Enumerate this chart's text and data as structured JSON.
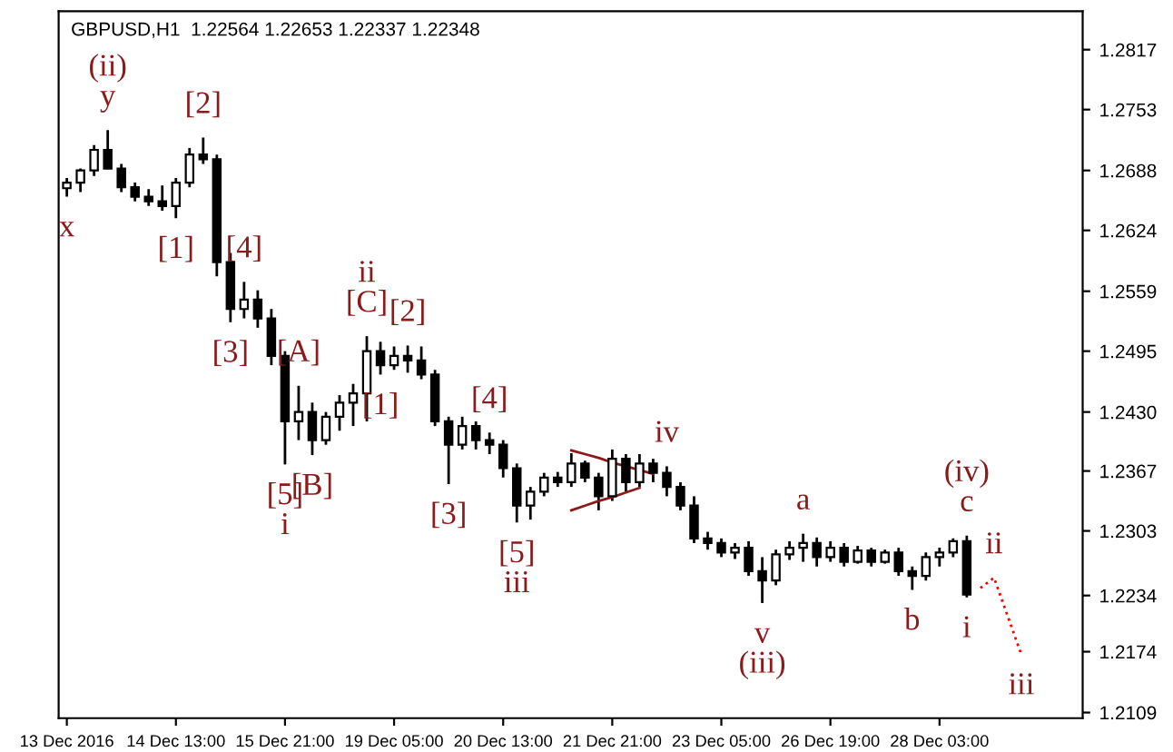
{
  "chart_data": {
    "type": "candlestick",
    "title": "GBPUSD,H1  1.22564 1.22653 1.22337 1.22348",
    "color": "#000000",
    "categories": [
      "13 Dec 2016",
      null,
      null,
      null,
      null,
      null,
      null,
      null,
      "14 Dec 13:00",
      null,
      null,
      null,
      null,
      null,
      null,
      null,
      "15 Dec 21:00",
      null,
      null,
      null,
      null,
      null,
      null,
      null,
      "19 Dec 05:00",
      null,
      null,
      null,
      null,
      null,
      null,
      null,
      "20 Dec 13:00",
      null,
      null,
      null,
      null,
      null,
      null,
      null,
      "21 Dec 21:00",
      null,
      null,
      null,
      null,
      null,
      null,
      null,
      "23 Dec 05:00",
      null,
      null,
      null,
      null,
      null,
      null,
      null,
      "26 Dec 19:00",
      null,
      null,
      null,
      null,
      null,
      null,
      null,
      "28 Dec 03:00",
      null,
      null,
      null,
      null,
      null,
      null,
      null,
      null,
      null,
      null
    ],
    "ohlc": [
      [
        1.2669,
        1.268,
        1.266,
        1.2675
      ],
      [
        1.2675,
        1.269,
        1.2665,
        1.2688
      ],
      [
        1.2688,
        1.2715,
        1.2682,
        1.271
      ],
      [
        1.271,
        1.2731,
        1.269,
        1.269
      ],
      [
        1.269,
        1.2695,
        1.2665,
        1.267
      ],
      [
        1.267,
        1.2675,
        1.2655,
        1.266
      ],
      [
        1.266,
        1.2668,
        1.265,
        1.2655
      ],
      [
        1.2655,
        1.2672,
        1.2645,
        1.265
      ],
      [
        1.265,
        1.268,
        1.2637,
        1.2675
      ],
      [
        1.2675,
        1.2712,
        1.267,
        1.2705
      ],
      [
        1.2705,
        1.2723,
        1.2695,
        1.27
      ],
      [
        1.27,
        1.2705,
        1.2575,
        1.259
      ],
      [
        1.259,
        1.26,
        1.2526,
        1.254
      ],
      [
        1.254,
        1.2569,
        1.253,
        1.255
      ],
      [
        1.255,
        1.256,
        1.252,
        1.253
      ],
      [
        1.253,
        1.254,
        1.248,
        1.249
      ],
      [
        1.249,
        1.2495,
        1.2374,
        1.242
      ],
      [
        1.242,
        1.2458,
        1.24,
        1.243
      ],
      [
        1.243,
        1.244,
        1.2384,
        1.24
      ],
      [
        1.24,
        1.243,
        1.2395,
        1.2425
      ],
      [
        1.2425,
        1.2448,
        1.241,
        1.244
      ],
      [
        1.244,
        1.246,
        1.2415,
        1.245
      ],
      [
        1.245,
        1.2511,
        1.242,
        1.2495
      ],
      [
        1.2495,
        1.2505,
        1.247,
        1.248
      ],
      [
        1.248,
        1.25,
        1.2475,
        1.249
      ],
      [
        1.249,
        1.2501,
        1.2472,
        1.2485
      ],
      [
        1.2485,
        1.25,
        1.2465,
        1.247
      ],
      [
        1.247,
        1.2475,
        1.2415,
        1.242
      ],
      [
        1.242,
        1.2425,
        1.2353,
        1.2395
      ],
      [
        1.2395,
        1.2425,
        1.239,
        1.2415
      ],
      [
        1.2415,
        1.242,
        1.239,
        1.24
      ],
      [
        1.24,
        1.2408,
        1.2385,
        1.2395
      ],
      [
        1.2395,
        1.24,
        1.236,
        1.237
      ],
      [
        1.237,
        1.2375,
        1.2312,
        1.233
      ],
      [
        1.233,
        1.235,
        1.2315,
        1.2345
      ],
      [
        1.2345,
        1.2365,
        1.234,
        1.236
      ],
      [
        1.236,
        1.2366,
        1.235,
        1.2355
      ],
      [
        1.2355,
        1.2386,
        1.235,
        1.2375
      ],
      [
        1.2375,
        1.2378,
        1.2355,
        1.236
      ],
      [
        1.236,
        1.2365,
        1.2325,
        1.234
      ],
      [
        1.234,
        1.239,
        1.2335,
        1.238
      ],
      [
        1.238,
        1.2385,
        1.2345,
        1.2355
      ],
      [
        1.2355,
        1.2385,
        1.235,
        1.2375
      ],
      [
        1.2375,
        1.238,
        1.2355,
        1.2365
      ],
      [
        1.2365,
        1.2372,
        1.234,
        1.235
      ],
      [
        1.235,
        1.2355,
        1.2325,
        1.233
      ],
      [
        1.233,
        1.234,
        1.229,
        1.2295
      ],
      [
        1.2295,
        1.2302,
        1.2283,
        1.229
      ],
      [
        1.229,
        1.2295,
        1.2275,
        1.228
      ],
      [
        1.228,
        1.229,
        1.2273,
        1.2285
      ],
      [
        1.2285,
        1.2292,
        1.2255,
        1.226
      ],
      [
        1.226,
        1.2275,
        1.2226,
        1.225
      ],
      [
        1.225,
        1.2283,
        1.2245,
        1.2278
      ],
      [
        1.2278,
        1.2292,
        1.2272,
        1.2285
      ],
      [
        1.2285,
        1.23,
        1.227,
        1.229
      ],
      [
        1.229,
        1.2296,
        1.2265,
        1.2275
      ],
      [
        1.2275,
        1.2292,
        1.227,
        1.2285
      ],
      [
        1.2285,
        1.229,
        1.2265,
        1.227
      ],
      [
        1.227,
        1.2287,
        1.2268,
        1.2282
      ],
      [
        1.2282,
        1.2285,
        1.2265,
        1.227
      ],
      [
        1.227,
        1.2283,
        1.2268,
        1.228
      ],
      [
        1.228,
        1.2285,
        1.2255,
        1.226
      ],
      [
        1.226,
        1.2265,
        1.224,
        1.2255
      ],
      [
        1.2255,
        1.228,
        1.225,
        1.2275
      ],
      [
        1.2275,
        1.2285,
        1.2265,
        1.228
      ],
      [
        1.228,
        1.2295,
        1.2275,
        1.2292
      ],
      [
        1.2292,
        1.2298,
        1.2232,
        1.2235
      ],
      null,
      null,
      null,
      null,
      null,
      null,
      null,
      null
    ],
    "series": [
      {
        "type": "line",
        "color": "#8b1a1a",
        "values": [
          null,
          null,
          null,
          null,
          null,
          null,
          null,
          null,
          null,
          null,
          null,
          null,
          null,
          null,
          null,
          null,
          null,
          null,
          null,
          null,
          null,
          null,
          null,
          null,
          null,
          null,
          null,
          null,
          null,
          null,
          null,
          null,
          null,
          null,
          null,
          null,
          null,
          1.2389,
          1.2385,
          1.2381,
          1.2376,
          1.2372,
          1.2368,
          1.2364,
          null,
          null,
          null,
          null,
          null,
          null,
          null,
          null,
          null,
          null,
          null,
          null,
          null,
          null,
          null,
          null,
          null,
          null,
          null,
          null,
          null,
          null,
          null,
          null,
          null,
          null,
          null,
          null,
          null,
          null,
          null
        ]
      },
      {
        "type": "line",
        "color": "#8b1a1a",
        "values": [
          null,
          null,
          null,
          null,
          null,
          null,
          null,
          null,
          null,
          null,
          null,
          null,
          null,
          null,
          null,
          null,
          null,
          null,
          null,
          null,
          null,
          null,
          null,
          null,
          null,
          null,
          null,
          null,
          null,
          null,
          null,
          null,
          null,
          null,
          null,
          null,
          null,
          1.2325,
          1.233,
          1.2335,
          1.2339,
          1.2344,
          1.2349,
          null,
          null,
          null,
          null,
          null,
          null,
          null,
          null,
          null,
          null,
          null,
          null,
          null,
          null,
          null,
          null,
          null,
          null,
          null,
          null,
          null,
          null,
          null,
          null,
          null,
          null,
          null,
          null,
          null,
          null,
          null,
          null
        ]
      },
      {
        "type": "line",
        "color": "#ff0000",
        "line_style": "dotted",
        "values": [
          null,
          null,
          null,
          null,
          null,
          null,
          null,
          null,
          null,
          null,
          null,
          null,
          null,
          null,
          null,
          null,
          null,
          null,
          null,
          null,
          null,
          null,
          null,
          null,
          null,
          null,
          null,
          null,
          null,
          null,
          null,
          null,
          null,
          null,
          null,
          null,
          null,
          null,
          null,
          null,
          null,
          null,
          null,
          null,
          null,
          null,
          null,
          null,
          null,
          null,
          null,
          null,
          null,
          null,
          null,
          null,
          null,
          null,
          null,
          null,
          null,
          null,
          null,
          null,
          null,
          null,
          null,
          1.2242,
          1.2253,
          1.2212,
          1.2171,
          null,
          null,
          null,
          null
        ]
      }
    ],
    "ylim": [
      1.2103,
      1.2858
    ],
    "yticks": [
      1.2109,
      1.2174,
      1.2234,
      1.2303,
      1.2367,
      {
        "value": 1.243,
        "label": "1.2430"
      },
      1.2495,
      1.2559,
      1.2624,
      1.2688,
      1.2753,
      1.2817
    ],
    "grid": false,
    "annotations": [
      {
        "text": "(ii)",
        "y": 1.2731
      },
      {
        "text": "y",
        "y": 1.2731
      },
      {
        "text": "x",
        "y": 1.266
      },
      {
        "text": "[1]",
        "y": 1.2637
      },
      {
        "text": "[2]",
        "y": 1.2723
      },
      {
        "text": "[3]",
        "y": 1.2526
      },
      {
        "text": "[4]",
        "y": 1.2569
      },
      {
        "text": "[5]",
        "y": 1.2374
      },
      {
        "text": "i",
        "y": 1.2374
      },
      {
        "text": "[A]",
        "y": 1.2458
      },
      {
        "text": "[B]",
        "y": 1.2384
      },
      {
        "text": "ii",
        "y": 1.2511
      },
      {
        "text": "[C]",
        "y": 1.2511
      },
      {
        "text": "[1]",
        "y": 1.247
      },
      {
        "text": "[2]",
        "y": 1.2501
      },
      {
        "text": "[3]",
        "y": 1.2353
      },
      {
        "text": "[4]",
        "y": 1.2408
      },
      {
        "text": "[5]",
        "y": 1.2312
      },
      {
        "text": "iii",
        "y": 1.2312
      },
      {
        "text": "iv",
        "y": 1.2372
      },
      {
        "text": "v",
        "y": 1.2226
      },
      {
        "text": "(iii)",
        "y": 1.2226
      },
      {
        "text": "a",
        "y": 1.23
      },
      {
        "text": "b",
        "y": 1.224
      },
      {
        "text": "(iv)",
        "y": 1.2298
      },
      {
        "text": "c",
        "y": 1.2298
      },
      {
        "text": "i",
        "y": 1.2232
      },
      {
        "text": "ii",
        "y": 1.2253
      },
      {
        "text": "iii",
        "y": 1.2171
      }
    ]
  }
}
